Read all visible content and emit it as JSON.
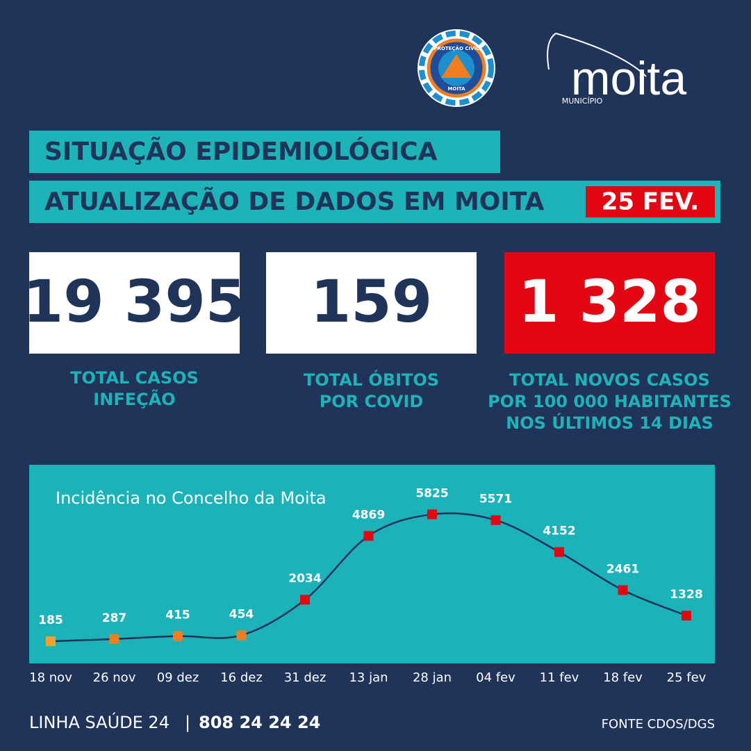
{
  "logos": {
    "badge_top": "PROTEÇÃO CIVIL",
    "badge_bottom": "MOITA",
    "municipality_name": "moita",
    "municipality_caption": "MUNICÍPIO"
  },
  "header": {
    "title": "SITUAÇÃO EPIDEMIOLÓGICA",
    "subtitle": "ATUALIZAÇÃO DE DADOS EM MOITA",
    "date": "25 FEV."
  },
  "stats": [
    {
      "value": "19 395",
      "label": [
        "TOTAL CASOS",
        "INFEÇÃO"
      ]
    },
    {
      "value": "159",
      "label": [
        "TOTAL ÓBITOS",
        "POR COVID"
      ]
    },
    {
      "value": "1 328",
      "label": [
        "TOTAL NOVOS CASOS",
        "POR 100 000 HABITANTES",
        "NOS ÚLTIMOS 14 DIAS"
      ]
    }
  ],
  "chart_data": {
    "type": "line",
    "title": "Incidência no Concelho da Moita",
    "categories": [
      "18 nov",
      "26 nov",
      "09 dez",
      "16 dez",
      "31 dez",
      "13 jan",
      "28 jan",
      "04 fev",
      "11 fev",
      "18 fev",
      "25 fev"
    ],
    "values": [
      185,
      287,
      415,
      454,
      2034,
      4869,
      5825,
      5571,
      4152,
      2461,
      1328
    ],
    "color": "#1f3158",
    "marker_colors": [
      "#f0a030",
      "#ef7d22",
      "#ef7d22",
      "#ef7d22",
      "#e30613",
      "#e30613",
      "#e30613",
      "#e30613",
      "#e30613",
      "#e30613",
      "#e30613"
    ],
    "ylim": [
      -800,
      8000
    ]
  },
  "footer": {
    "hotline_label": "LINHA SAÚDE 24",
    "separator": "|",
    "hotline_number": "808 24 24 24",
    "source": "FONTE CDOS/DGS"
  }
}
